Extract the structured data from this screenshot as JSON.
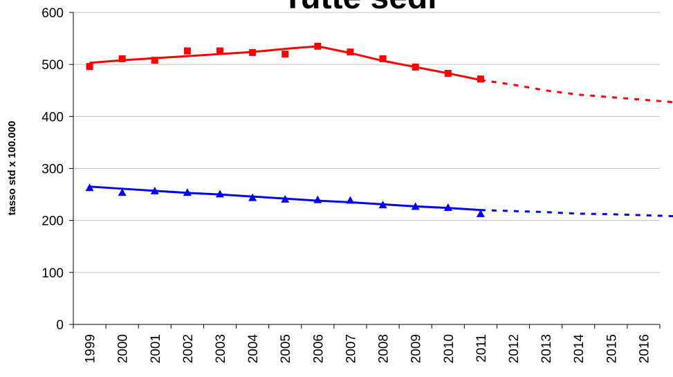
{
  "chart_data": {
    "type": "line",
    "title": "Tutte sedi",
    "ylabel": "tasso std x 100.000",
    "xlabel": "",
    "ylim": [
      0,
      600
    ],
    "yticks": [
      0,
      100,
      200,
      300,
      400,
      500,
      600
    ],
    "categories": [
      "1999",
      "2000",
      "2001",
      "2002",
      "2003",
      "2004",
      "2005",
      "2006",
      "2007",
      "2008",
      "2009",
      "2010",
      "2011",
      "2012",
      "2013",
      "2014",
      "2015",
      "2016"
    ],
    "grid": true,
    "series": [
      {
        "color": "#ff0000",
        "marker": "square",
        "observed": [
          496,
          511,
          508,
          526,
          526,
          523,
          520,
          535,
          524,
          511,
          495,
          483,
          472
        ],
        "fitted": [
          503,
          508,
          512,
          516,
          520,
          524,
          530,
          535,
          522,
          507,
          495,
          483,
          470
        ],
        "projected": [
          470,
          461,
          450,
          442,
          437,
          432,
          427,
          420
        ]
      },
      {
        "color": "#0000ff",
        "marker": "triangle",
        "observed": [
          263,
          254,
          257,
          254,
          251,
          244,
          241,
          240,
          239,
          230,
          227,
          225,
          213
        ],
        "fitted": [
          265,
          261,
          257,
          253,
          250,
          246,
          242,
          238,
          235,
          231,
          227,
          224,
          220
        ],
        "projected": [
          220,
          218,
          216,
          213,
          212,
          210,
          208,
          206
        ]
      }
    ]
  }
}
